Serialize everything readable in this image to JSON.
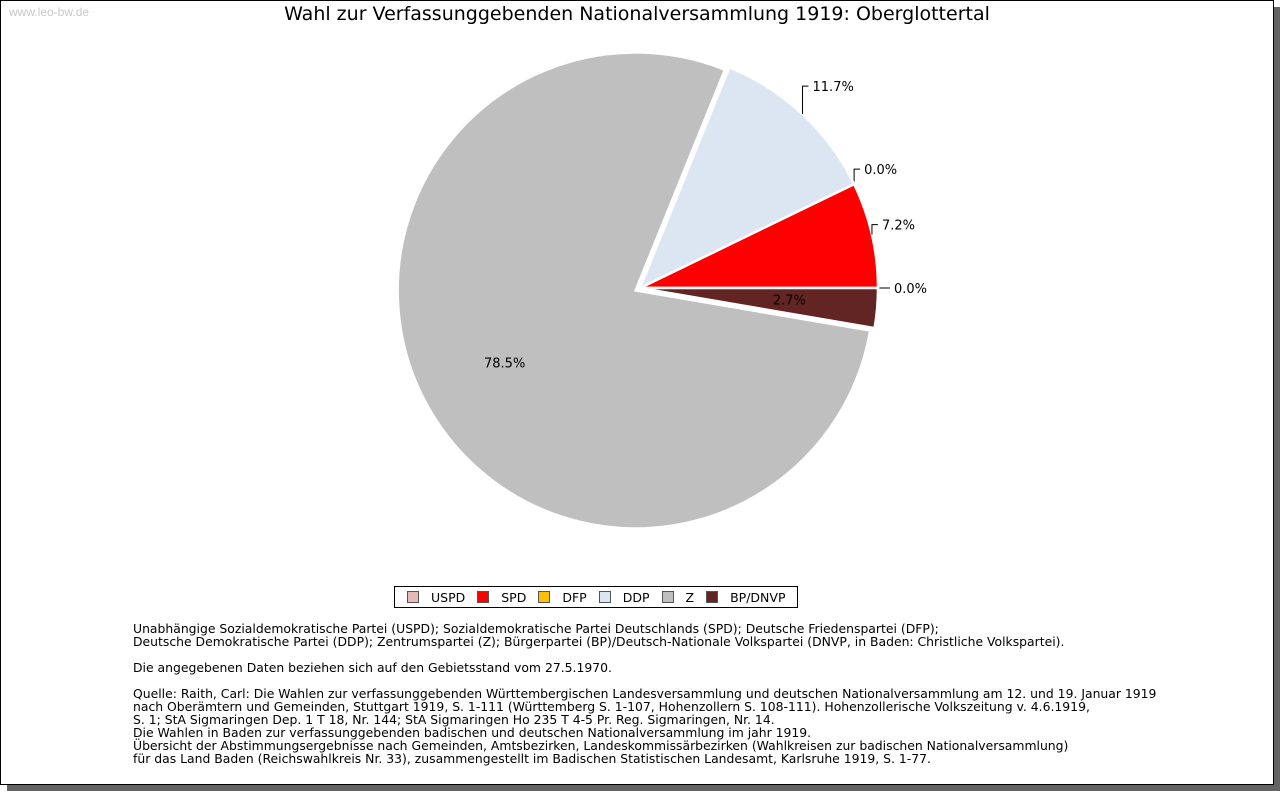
{
  "watermark": "www.leo-bw.de",
  "chart_data": {
    "type": "pie",
    "title": "Wahl zur Verfassunggebenden Nationalversammlung 1919: Oberglottertal",
    "start": "3 o'clock, counter-clockwise",
    "legend_placement": "bottom",
    "slices": [
      {
        "name": "USPD",
        "value": 0.0,
        "label": "0.0%",
        "color": "#e6b9b8",
        "label_position": "outside"
      },
      {
        "name": "SPD",
        "value": 7.2,
        "label": "7.2%",
        "color": "#ff0000",
        "label_position": "outside"
      },
      {
        "name": "DFP",
        "value": 0.0,
        "label": "0.0%",
        "color": "#ffc000",
        "label_position": "outside"
      },
      {
        "name": "DDP",
        "value": 11.7,
        "label": "11.7%",
        "color": "#dce6f2",
        "label_position": "outside"
      },
      {
        "name": "Z",
        "value": 78.5,
        "label": "78.5%",
        "color": "#bfbfbf",
        "label_position": "inside",
        "exploded": true
      },
      {
        "name": "BP/DNVP",
        "value": 2.7,
        "label": "2.7%",
        "color": "#632523",
        "label_position": "inside"
      }
    ]
  },
  "notes": {
    "parties_1": "Unabhängige Sozialdemokratische Partei (USPD); Sozialdemokratische Partei Deutschlands (SPD); Deutsche Friedenspartei (DFP);",
    "parties_2": "Deutsche Demokratische Partei (DDP); Zentrumspartei (Z); Bürgerpartei (BP)/Deutsch-Nationale Volkspartei (DNVP, in Baden: Christliche Volkspartei).",
    "territory": "Die angegebenen Daten beziehen sich auf den Gebietsstand vom 27.5.1970.",
    "source_1": "Quelle: Raith, Carl: Die Wahlen zur verfassunggebenden Württembergischen Landesversammlung und deutschen Nationalversammlung am 12. und 19. Januar 1919",
    "source_2": "nach Oberämtern und Gemeinden, Stuttgart 1919, S. 1-111 (Württemberg S. 1-107, Hohenzollern S. 108-111). Hohenzollerische Volkszeitung v. 4.6.1919,",
    "source_3": "S. 1; StA Sigmaringen Dep. 1 T 18, Nr. 144; StA Sigmaringen Ho 235 T 4-5 Pr. Reg. Sigmaringen, Nr. 14.",
    "source_4": "Die Wahlen in Baden zur verfassunggebenden badischen und deutschen Nationalversammlung im jahr 1919.",
    "source_5": "Übersicht der Abstimmungsergebnisse nach Gemeinden, Amtsbezirken, Landeskommissärbezirken (Wahlkreisen zur badischen Nationalversammlung)",
    "source_6": "für das Land Baden (Reichswahlkreis Nr. 33), zusammengestellt im Badischen Statistischen Landesamt, Karlsruhe 1919, S. 1-77."
  }
}
